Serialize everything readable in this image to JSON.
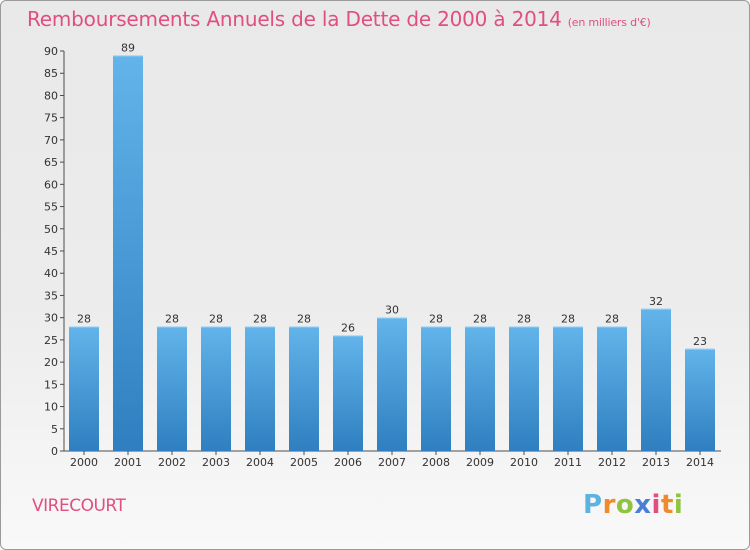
{
  "header": {
    "title": "Remboursements Annuels de la Dette de 2000 à 2014",
    "subtitle": "(en milliers d'€)"
  },
  "commune": "VIRECOURT",
  "logo": {
    "letters": [
      "P",
      "r",
      "o",
      "x",
      "i",
      "t",
      "i"
    ],
    "alt": "Proxiti"
  },
  "colors": {
    "title": "#e04f7e",
    "bar_top": "#62b4ea",
    "bar_bottom": "#2f7fc0"
  },
  "chart_data": {
    "type": "bar",
    "categories": [
      "2000",
      "2001",
      "2002",
      "2003",
      "2004",
      "2005",
      "2006",
      "2007",
      "2008",
      "2009",
      "2010",
      "2011",
      "2012",
      "2013",
      "2014"
    ],
    "values": [
      28,
      89,
      28,
      28,
      28,
      28,
      26,
      30,
      28,
      28,
      28,
      28,
      28,
      32,
      23
    ],
    "ylim": [
      0,
      90
    ],
    "yticks": [
      0,
      5,
      10,
      15,
      20,
      25,
      30,
      35,
      40,
      45,
      50,
      55,
      60,
      65,
      70,
      75,
      80,
      85,
      90
    ],
    "grid": false,
    "data_labels": true
  }
}
